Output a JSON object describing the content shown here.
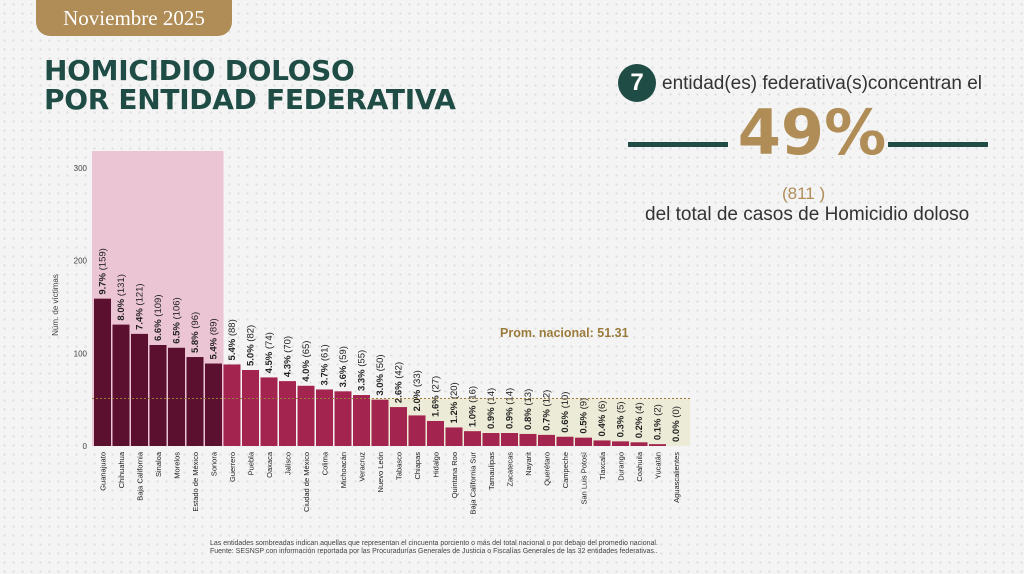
{
  "header": {
    "month": "Noviembre 2025"
  },
  "title": {
    "line1": "HOMICIDIO DOLOSO",
    "line2": "POR ENTIDAD FEDERATIVA"
  },
  "summary": {
    "entity_count": "7",
    "text1": "entidad(es) federativa(s)concentran el",
    "percentage": "49%",
    "cases": "(811 )",
    "text2": "del total de casos de Homicidio doloso"
  },
  "footnotes": {
    "line1": "Las entidades sombreadas indican aquellas que representan el cincuenta porciento o más del total nacional o por debajo del promedio nacional.",
    "line2": "Fuente: SESNSP con información reportada por las Procuradurías Generales de Justicia o Fiscalías Generales de las 32 entidades federativas.."
  },
  "colors": {
    "bar_top": "#5c1030",
    "bar_rest": "#a3244f",
    "highlight_bg": "#ecc5d5",
    "below_avg_bg": "#ecebd7",
    "avg_line": "#9a7b3c",
    "brand_green": "#1f4d45",
    "brand_gold": "#b08d57"
  },
  "chart_data": {
    "type": "bar",
    "ylabel": "Núm. de víctimas",
    "ylim": [
      0,
      300
    ],
    "yticks": [
      0,
      100,
      200,
      300
    ],
    "average": 51.31,
    "average_label": "Prom. nacional: 51.31",
    "highlighted_count": 7,
    "categories": [
      "Guanajuato",
      "Chihuahua",
      "Baja California",
      "Sinaloa",
      "Morelos",
      "Estado de México",
      "Sonora",
      "Guerrero",
      "Puebla",
      "Oaxaca",
      "Jalisco",
      "Ciudad de México",
      "Colima",
      "Michoacán",
      "Veracruz",
      "Nuevo León",
      "Tabasco",
      "Chiapas",
      "Hidalgo",
      "Quintana Roo",
      "Baja California Sur",
      "Tamaulipas",
      "Zacatecas",
      "Nayarit",
      "Querétaro",
      "Campeche",
      "San Luis Potosí",
      "Tlaxcala",
      "Durango",
      "Coahuila",
      "Yucatán",
      "Aguascalientes"
    ],
    "values": [
      159,
      131,
      121,
      109,
      106,
      96,
      89,
      88,
      82,
      74,
      70,
      65,
      61,
      59,
      55,
      50,
      42,
      33,
      27,
      20,
      16,
      14,
      14,
      13,
      12,
      10,
      9,
      6,
      5,
      4,
      2,
      0
    ],
    "percents": [
      "9.7%",
      "8.0%",
      "7.4%",
      "6.6%",
      "6.5%",
      "5.8%",
      "5.4%",
      "5.4%",
      "5.0%",
      "4.5%",
      "4.3%",
      "4.0%",
      "3.7%",
      "3.6%",
      "3.3%",
      "3.0%",
      "2.6%",
      "2.0%",
      "1.6%",
      "1.2%",
      "1.0%",
      "0.9%",
      "0.9%",
      "0.8%",
      "0.7%",
      "0.6%",
      "0.5%",
      "0.4%",
      "0.3%",
      "0.2%",
      "0.1%",
      "0.0%"
    ]
  }
}
